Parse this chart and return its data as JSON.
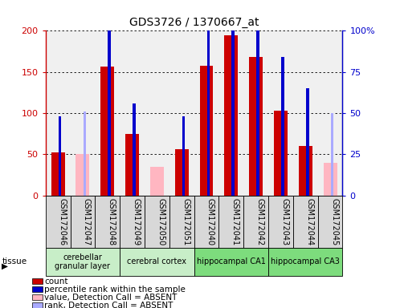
{
  "title": "GDS3726 / 1370667_at",
  "samples": [
    "GSM172046",
    "GSM172047",
    "GSM172048",
    "GSM172049",
    "GSM172050",
    "GSM172051",
    "GSM172040",
    "GSM172041",
    "GSM172042",
    "GSM172043",
    "GSM172044",
    "GSM172045"
  ],
  "count_present": [
    52,
    0,
    157,
    75,
    0,
    56,
    158,
    195,
    168,
    103,
    60,
    0
  ],
  "count_absent": [
    0,
    50,
    0,
    0,
    35,
    0,
    0,
    0,
    0,
    0,
    0,
    40
  ],
  "rank_present": [
    48,
    0,
    100,
    56,
    0,
    48,
    100,
    106,
    104,
    84,
    65,
    0
  ],
  "rank_absent": [
    0,
    51,
    0,
    0,
    0,
    0,
    0,
    0,
    0,
    0,
    0,
    50
  ],
  "ylim_left": [
    0,
    200
  ],
  "ylim_right": [
    0,
    100
  ],
  "left_ticks": [
    0,
    50,
    100,
    150,
    200
  ],
  "right_ticks": [
    0,
    25,
    50,
    75,
    100
  ],
  "tissue_groups": [
    {
      "label": "cerebellar\ngranular layer",
      "start": 0,
      "end": 3,
      "color": "#c8eec8"
    },
    {
      "label": "cerebral cortex",
      "start": 3,
      "end": 6,
      "color": "#c8eec8"
    },
    {
      "label": "hippocampal CA1",
      "start": 6,
      "end": 9,
      "color": "#7ddc7d"
    },
    {
      "label": "hippocampal CA3",
      "start": 9,
      "end": 12,
      "color": "#7ddc7d"
    }
  ],
  "bar_color_present": "#cc0000",
  "bar_color_absent": "#ffb6c1",
  "rank_color_present": "#0000cc",
  "rank_color_absent": "#aaaaff",
  "bar_width": 0.55,
  "rank_bar_width": 0.12,
  "bg_color": "#ffffff",
  "grid_color": "#000000",
  "left_axis_color": "#cc0000",
  "right_axis_color": "#0000cc",
  "legend_items": [
    {
      "label": "count",
      "color": "#cc0000",
      "marker": "square"
    },
    {
      "label": "percentile rank within the sample",
      "color": "#0000cc",
      "marker": "square"
    },
    {
      "label": "value, Detection Call = ABSENT",
      "color": "#ffb6c1",
      "marker": "square"
    },
    {
      "label": "rank, Detection Call = ABSENT",
      "color": "#aaaaff",
      "marker": "square"
    }
  ]
}
